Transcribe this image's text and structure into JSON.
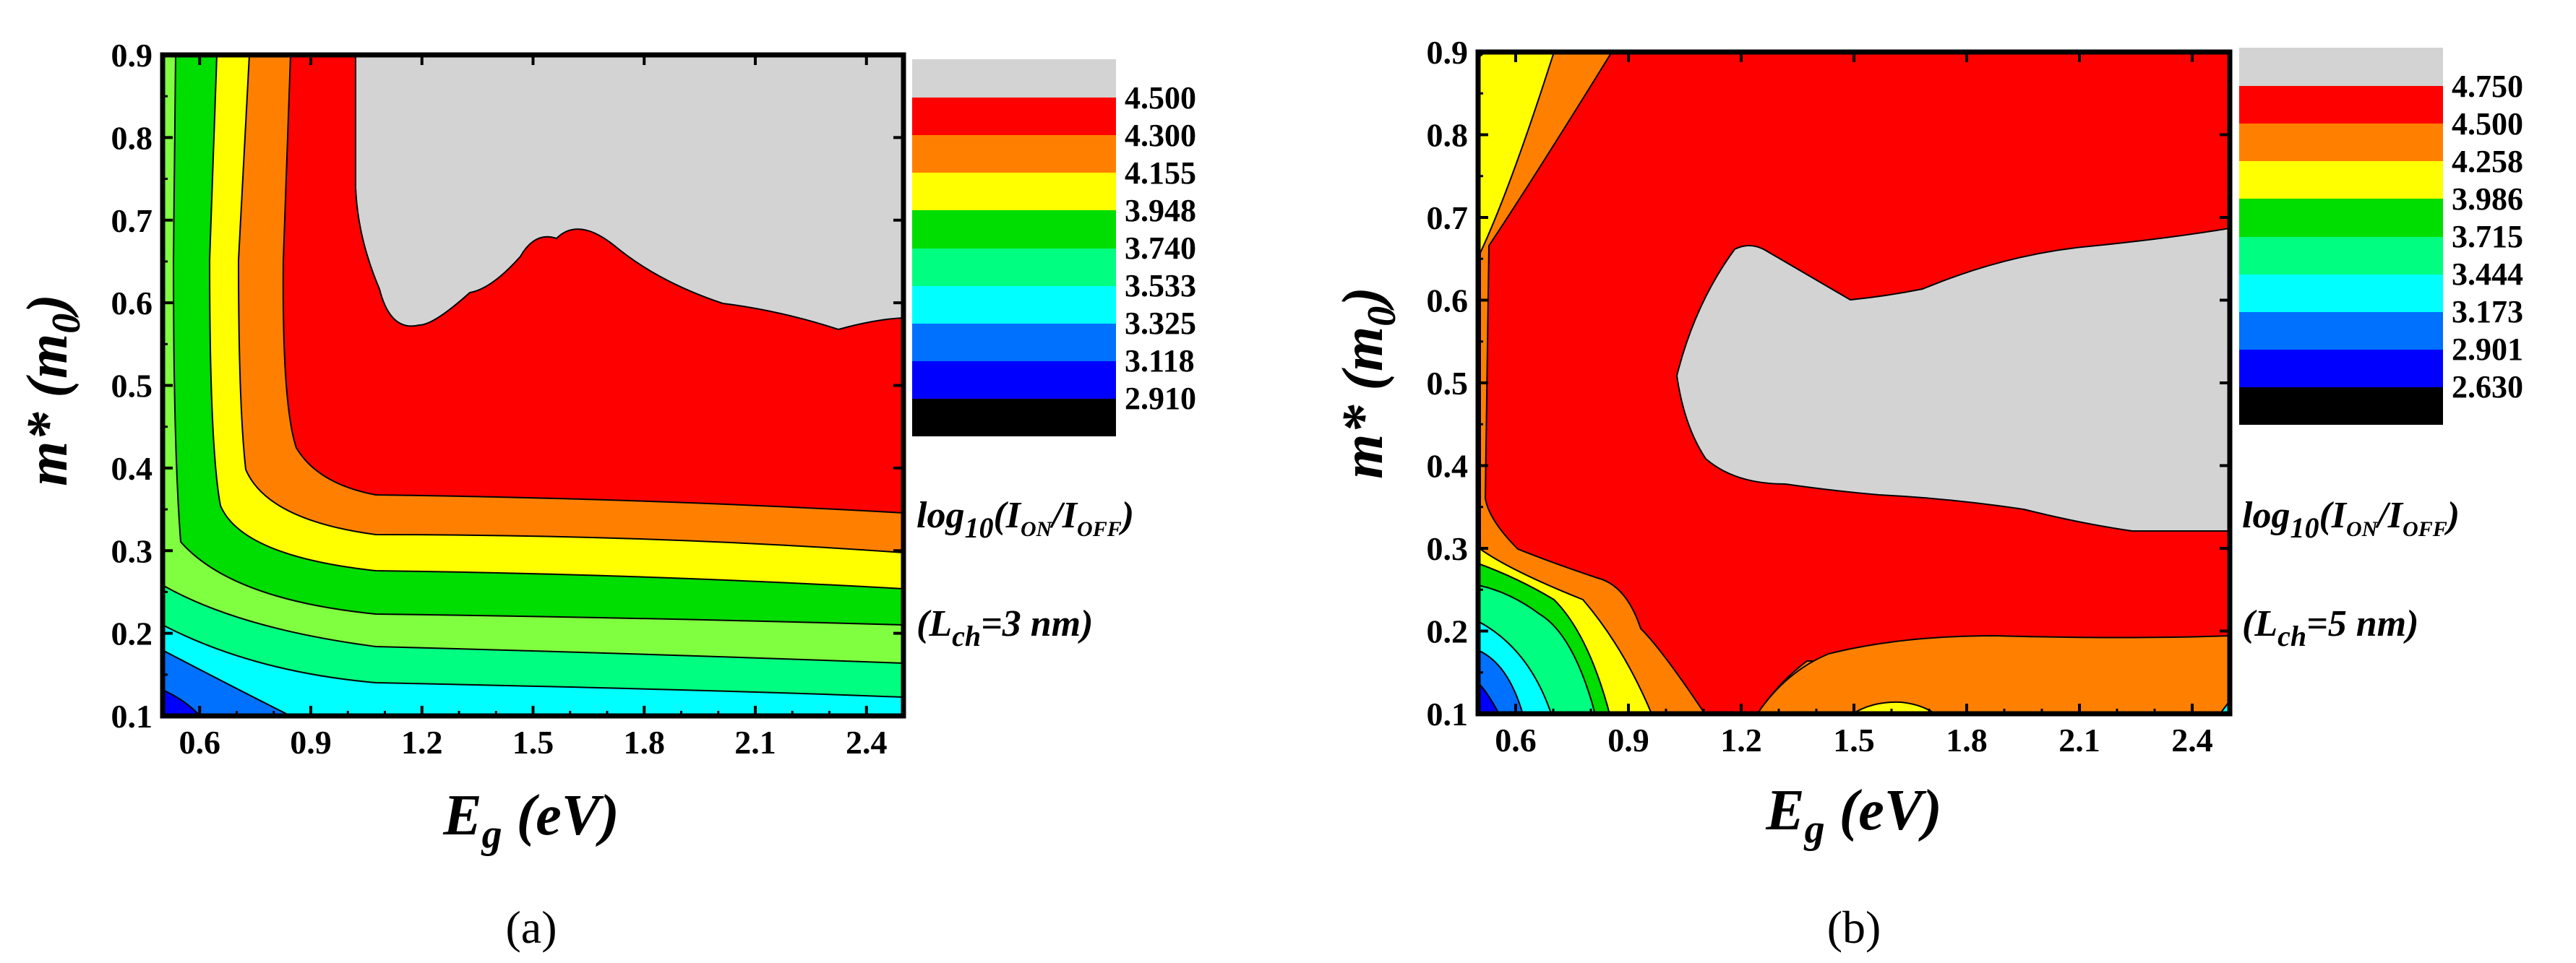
{
  "chart_data": [
    {
      "panel": "(a)",
      "type": "contour",
      "xlabel": {
        "main": "E",
        "sub": "g",
        "unit": " (eV)"
      },
      "ylabel": {
        "main": "m* (m",
        "sub": "0",
        "close": ")"
      },
      "xlim": [
        0.5,
        2.5
      ],
      "ylim": [
        0.1,
        0.9
      ],
      "xticks": [
        "0.6",
        "0.9",
        "1.2",
        "1.5",
        "1.8",
        "2.1",
        "2.4"
      ],
      "yticks": [
        "0.1",
        "0.2",
        "0.3",
        "0.4",
        "0.5",
        "0.6",
        "0.7",
        "0.8",
        "0.9"
      ],
      "colorbar": {
        "levels": [
          "4.500",
          "4.300",
          "4.155",
          "3.948",
          "3.740",
          "3.533",
          "3.325",
          "3.118",
          "2.910"
        ],
        "title": {
          "pre": "log",
          "sub1": "10",
          "mid": "(I",
          "sub2": "ON",
          "slash": "/I",
          "sub3": "OFF",
          "close": ")"
        },
        "note": {
          "pre": "(L",
          "sub": "ch",
          "post": "=3 nm)"
        }
      },
      "contours": [
        {
          "level": "> 4.500",
          "region": "top-right",
          "boundary": [
            [
              1.02,
              0.9
            ],
            [
              1.02,
              0.76
            ],
            [
              1.1,
              0.61
            ],
            [
              1.2,
              0.57
            ],
            [
              1.45,
              0.61
            ],
            [
              1.55,
              0.67
            ],
            [
              1.62,
              0.68
            ],
            [
              1.75,
              0.65
            ],
            [
              1.9,
              0.61
            ],
            [
              2.1,
              0.59
            ],
            [
              2.3,
              0.57
            ],
            [
              2.5,
              0.58
            ]
          ]
        },
        {
          "level": "4.300",
          "boundary": [
            [
              0.88,
              0.9
            ],
            [
              0.86,
              0.5
            ],
            [
              0.9,
              0.4
            ],
            [
              1.0,
              0.37
            ],
            [
              1.3,
              0.36
            ],
            [
              2.0,
              0.36
            ],
            [
              2.5,
              0.34
            ]
          ]
        },
        {
          "level": "4.155",
          "boundary": [
            [
              0.76,
              0.9
            ],
            [
              0.74,
              0.45
            ],
            [
              0.8,
              0.36
            ],
            [
              0.95,
              0.32
            ],
            [
              1.3,
              0.31
            ],
            [
              2.0,
              0.3
            ],
            [
              2.5,
              0.28
            ]
          ]
        },
        {
          "level": "3.948",
          "boundary": [
            [
              0.66,
              0.9
            ],
            [
              0.64,
              0.45
            ],
            [
              0.67,
              0.33
            ],
            [
              0.8,
              0.28
            ],
            [
              1.2,
              0.26
            ],
            [
              2.0,
              0.25
            ],
            [
              2.5,
              0.23
            ]
          ]
        },
        {
          "level": "3.740",
          "boundary": [
            [
              0.57,
              0.9
            ],
            [
              0.57,
              0.4
            ],
            [
              0.6,
              0.31
            ],
            [
              0.8,
              0.23
            ],
            [
              1.2,
              0.21
            ],
            [
              2.0,
              0.2
            ],
            [
              2.5,
              0.19
            ]
          ]
        },
        {
          "level": "3.533",
          "boundary": [
            [
              0.5,
              0.28
            ],
            [
              0.6,
              0.23
            ],
            [
              0.8,
              0.19
            ],
            [
              1.2,
              0.17
            ],
            [
              2.0,
              0.16
            ],
            [
              2.5,
              0.15
            ]
          ]
        },
        {
          "level": "3.325",
          "boundary": [
            [
              0.5,
              0.22
            ],
            [
              0.6,
              0.18
            ],
            [
              0.8,
              0.15
            ],
            [
              1.2,
              0.13
            ],
            [
              2.0,
              0.125
            ],
            [
              2.5,
              0.12
            ]
          ]
        },
        {
          "level": "3.118",
          "boundary": [
            [
              0.5,
              0.16
            ],
            [
              0.6,
              0.14
            ],
            [
              0.75,
              0.115
            ],
            [
              0.85,
              0.1
            ]
          ]
        },
        {
          "level": "2.910",
          "boundary": [
            [
              0.5,
              0.13
            ],
            [
              0.6,
              0.115
            ],
            [
              0.67,
              0.1
            ]
          ]
        }
      ]
    },
    {
      "panel": "(b)",
      "type": "contour",
      "xlabel": {
        "main": "E",
        "sub": "g",
        "unit": " (eV)"
      },
      "ylabel": {
        "main": "m* (m",
        "sub": "0",
        "close": ")"
      },
      "xlim": [
        0.5,
        2.5
      ],
      "ylim": [
        0.1,
        0.9
      ],
      "xticks": [
        "0.6",
        "0.9",
        "1.2",
        "1.5",
        "1.8",
        "2.1",
        "2.4"
      ],
      "yticks": [
        "0.1",
        "0.2",
        "0.3",
        "0.4",
        "0.5",
        "0.6",
        "0.7",
        "0.8",
        "0.9"
      ],
      "colorbar": {
        "levels": [
          "4.750",
          "4.500",
          "4.258",
          "3.986",
          "3.715",
          "3.444",
          "3.173",
          "2.901",
          "2.630"
        ],
        "title": {
          "pre": "log",
          "sub1": "10",
          "mid": "(I",
          "sub2": "ON",
          "slash": "/I",
          "sub3": "OFF",
          "close": ")"
        },
        "note": {
          "pre": "(L",
          "sub": "ch",
          "post": "=5 nm)"
        }
      },
      "contours": [
        {
          "level": "> 4.750",
          "region": "center-right",
          "boundary": [
            [
              1.05,
              0.48
            ],
            [
              1.1,
              0.6
            ],
            [
              1.2,
              0.65
            ],
            [
              1.3,
              0.65
            ],
            [
              1.5,
              0.59
            ],
            [
              1.8,
              0.62
            ],
            [
              2.1,
              0.65
            ],
            [
              2.3,
              0.66
            ],
            [
              2.5,
              0.67
            ],
            [
              2.5,
              0.3
            ],
            [
              2.2,
              0.32
            ],
            [
              1.8,
              0.35
            ],
            [
              1.4,
              0.37
            ],
            [
              1.2,
              0.39
            ],
            [
              1.1,
              0.43
            ]
          ]
        },
        {
          "level": "4.500",
          "boundary": [
            [
              0.78,
              0.9
            ],
            [
              0.6,
              0.6
            ],
            [
              0.5,
              0.4
            ],
            [
              0.55,
              0.33
            ],
            [
              0.75,
              0.25
            ],
            [
              0.9,
              0.17
            ],
            [
              1.05,
              0.1
            ],
            [
              1.35,
              0.17
            ],
            [
              1.7,
              0.19
            ],
            [
              2.1,
              0.18
            ],
            [
              2.5,
              0.17
            ]
          ]
        },
        {
          "level": "4.258",
          "boundary": [
            [
              0.65,
              0.9
            ],
            [
              0.5,
              0.75
            ],
            [
              0.5,
              0.3
            ],
            [
              0.65,
              0.25
            ],
            [
              0.8,
              0.16
            ],
            [
              0.9,
              0.1
            ]
          ]
        },
        {
          "level": "3.986",
          "boundary": [
            [
              0.5,
              0.89
            ],
            [
              0.5,
              0.26
            ],
            [
              0.62,
              0.2
            ],
            [
              0.72,
              0.13
            ],
            [
              0.78,
              0.1
            ]
          ]
        },
        {
          "level": "3.715",
          "boundary": [
            [
              0.5,
              0.23
            ],
            [
              0.6,
              0.18
            ],
            [
              0.68,
              0.1
            ]
          ]
        },
        {
          "level": "3.444",
          "boundary": [
            [
              0.5,
              0.2
            ],
            [
              0.57,
              0.15
            ],
            [
              0.62,
              0.1
            ]
          ]
        },
        {
          "level": "3.173",
          "boundary": [
            [
              0.5,
              0.17
            ],
            [
              0.55,
              0.13
            ],
            [
              0.57,
              0.1
            ]
          ]
        },
        {
          "level": "2.901",
          "boundary": [
            [
              0.5,
              0.14
            ],
            [
              0.53,
              0.1
            ]
          ]
        }
      ]
    }
  ]
}
